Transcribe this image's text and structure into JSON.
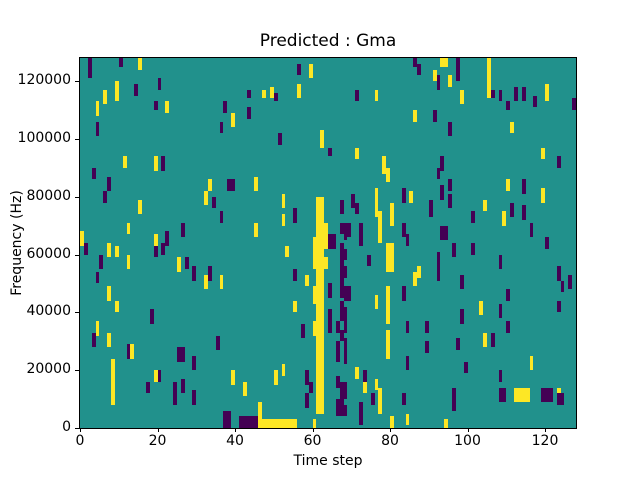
{
  "figure": {
    "title": "Predicted : Gma"
  },
  "chart_data": {
    "type": "heatmap",
    "title": "Predicted : Gma",
    "xlabel": "Time step",
    "ylabel": "Frequency (Hz)",
    "x_range": [
      0,
      128
    ],
    "y_range": [
      0,
      128000
    ],
    "x_ticks": [
      0,
      20,
      40,
      60,
      80,
      100,
      120
    ],
    "y_ticks": [
      0,
      20000,
      40000,
      60000,
      80000,
      100000,
      120000
    ],
    "grid": false,
    "legend": null,
    "colormap": "viridis",
    "colors": {
      "background_value": "#21918c",
      "low": "#440154",
      "high": "#fde725",
      "axes_text": "#000000"
    },
    "grid_size": {
      "time_steps": 128,
      "freq_rows": 128,
      "hz_per_row": 1000
    },
    "cell_encoding": "[time_step, freq_row_start, freq_row_end, value(0=purple/low,1=yellow/high), optional_time_span]",
    "cells": [
      [
        2,
        121,
        127,
        0
      ],
      [
        10,
        125,
        127,
        0
      ],
      [
        15,
        124,
        127,
        1
      ],
      [
        56,
        122,
        125,
        0
      ],
      [
        59,
        121,
        125,
        1
      ],
      [
        20,
        117,
        120,
        0
      ],
      [
        6,
        112,
        116,
        1
      ],
      [
        9,
        113,
        119,
        1
      ],
      [
        14,
        115,
        118,
        0
      ],
      [
        43,
        114,
        116,
        0
      ],
      [
        47,
        114,
        116,
        1
      ],
      [
        49,
        114,
        117,
        1
      ],
      [
        50,
        113,
        115,
        0
      ],
      [
        56,
        114,
        118,
        1
      ],
      [
        19,
        110,
        112,
        0
      ],
      [
        22,
        109,
        112,
        1
      ],
      [
        4,
        108,
        112,
        1
      ],
      [
        37,
        109,
        112,
        0
      ],
      [
        43,
        107,
        110,
        0
      ],
      [
        39,
        104,
        108,
        1
      ],
      [
        4,
        101,
        105,
        0
      ],
      [
        36,
        102,
        105,
        0
      ],
      [
        62,
        97,
        102,
        1
      ],
      [
        51,
        98,
        101,
        0
      ],
      [
        11,
        90,
        93,
        1
      ],
      [
        19,
        89,
        93,
        1
      ],
      [
        21,
        89,
        93,
        0
      ],
      [
        3,
        86,
        89,
        0
      ],
      [
        7,
        82,
        86,
        0
      ],
      [
        6,
        78,
        81,
        0
      ],
      [
        33,
        82,
        85,
        1
      ],
      [
        38,
        82,
        85,
        0,
        2
      ],
      [
        45,
        82,
        86,
        1
      ],
      [
        32,
        77,
        81,
        1
      ],
      [
        34,
        76,
        79,
        0
      ],
      [
        52,
        76,
        80,
        1
      ],
      [
        15,
        74,
        78,
        1
      ],
      [
        36,
        71,
        74,
        0
      ],
      [
        52,
        70,
        73,
        1
      ],
      [
        55,
        71,
        75,
        0
      ],
      [
        12,
        67,
        70,
        1
      ],
      [
        26,
        66,
        70,
        0
      ],
      [
        45,
        66,
        70,
        1
      ],
      [
        0,
        63,
        67,
        1
      ],
      [
        19,
        63,
        66,
        1
      ],
      [
        22,
        63,
        67,
        0
      ],
      [
        86,
        125,
        127,
        0
      ],
      [
        93,
        125,
        127,
        1,
        2
      ],
      [
        97,
        120,
        127,
        0
      ],
      [
        105,
        114,
        127,
        1
      ],
      [
        87,
        122,
        125,
        0
      ],
      [
        91,
        120,
        123,
        1
      ],
      [
        92,
        117,
        121,
        0
      ],
      [
        95,
        118,
        121,
        1
      ],
      [
        98,
        112,
        116,
        1
      ],
      [
        71,
        113,
        116,
        0
      ],
      [
        76,
        113,
        116,
        1
      ],
      [
        106,
        114,
        116,
        0
      ],
      [
        108,
        113,
        116,
        0
      ],
      [
        112,
        113,
        117,
        0
      ],
      [
        114,
        113,
        117,
        0
      ],
      [
        117,
        111,
        114,
        0
      ],
      [
        120,
        113,
        118,
        1
      ],
      [
        110,
        110,
        112,
        0
      ],
      [
        127,
        110,
        113,
        0
      ],
      [
        86,
        106,
        109,
        1
      ],
      [
        91,
        106,
        109,
        0
      ],
      [
        95,
        101,
        105,
        0
      ],
      [
        111,
        102,
        105,
        1
      ],
      [
        64,
        94,
        96,
        0
      ],
      [
        71,
        93,
        96,
        1
      ],
      [
        119,
        93,
        96,
        1
      ],
      [
        123,
        90,
        93,
        0
      ],
      [
        78,
        88,
        93,
        1
      ],
      [
        93,
        89,
        93,
        0
      ],
      [
        79,
        85,
        89,
        1
      ],
      [
        92,
        86,
        89,
        0
      ],
      [
        95,
        82,
        85,
        0
      ],
      [
        110,
        82,
        85,
        1
      ],
      [
        114,
        81,
        85,
        0
      ],
      [
        76,
        78,
        82,
        1
      ],
      [
        70,
        76,
        80,
        0
      ],
      [
        83,
        78,
        82,
        0
      ],
      [
        85,
        78,
        81,
        1
      ],
      [
        93,
        79,
        83,
        0
      ],
      [
        95,
        76,
        80,
        0
      ],
      [
        119,
        78,
        82,
        1
      ],
      [
        67,
        74,
        78,
        0
      ],
      [
        71,
        74,
        77,
        0
      ],
      [
        76,
        73,
        77,
        1
      ],
      [
        80,
        70,
        77,
        1
      ],
      [
        90,
        73,
        78,
        0
      ],
      [
        104,
        75,
        78,
        1
      ],
      [
        111,
        73,
        77,
        0
      ],
      [
        109,
        70,
        74,
        1
      ],
      [
        101,
        71,
        74,
        0
      ],
      [
        114,
        72,
        76,
        0
      ],
      [
        69,
        66,
        70,
        0
      ],
      [
        72,
        66,
        70,
        0
      ],
      [
        77,
        64,
        74,
        1
      ],
      [
        83,
        66,
        70,
        0
      ],
      [
        93,
        65,
        69,
        0,
        2
      ],
      [
        64,
        62,
        66,
        0,
        2
      ],
      [
        72,
        63,
        66,
        0
      ],
      [
        84,
        63,
        66,
        0
      ],
      [
        116,
        66,
        70,
        0
      ],
      [
        120,
        62,
        65,
        0
      ],
      [
        1,
        60,
        63,
        0
      ],
      [
        7,
        59,
        63,
        1
      ],
      [
        5,
        55,
        59,
        0
      ],
      [
        9,
        59,
        62,
        1
      ],
      [
        12,
        55,
        59,
        1
      ],
      [
        19,
        59,
        62,
        0
      ],
      [
        21,
        60,
        63,
        0
      ],
      [
        25,
        54,
        58,
        1
      ],
      [
        27,
        55,
        58,
        0
      ],
      [
        29,
        51,
        55,
        0
      ],
      [
        32,
        48,
        52,
        1
      ],
      [
        33,
        51,
        55,
        0
      ],
      [
        36,
        48,
        52,
        1
      ],
      [
        4,
        50,
        53,
        0
      ],
      [
        7,
        44,
        48,
        1
      ],
      [
        9,
        40,
        43,
        1
      ],
      [
        18,
        36,
        40,
        0
      ],
      [
        4,
        32,
        36,
        1
      ],
      [
        3,
        28,
        32,
        0
      ],
      [
        7,
        28,
        32,
        1
      ],
      [
        12,
        24,
        28,
        0
      ],
      [
        13,
        24,
        28,
        1
      ],
      [
        25,
        23,
        27,
        0,
        2
      ],
      [
        29,
        20,
        24,
        0
      ],
      [
        35,
        27,
        31,
        0
      ],
      [
        20,
        16,
        19,
        0
      ],
      [
        19,
        16,
        19,
        1
      ],
      [
        26,
        12,
        16,
        0
      ],
      [
        17,
        12,
        15,
        0
      ],
      [
        24,
        8,
        15,
        0
      ],
      [
        29,
        8,
        12,
        0
      ],
      [
        8,
        8,
        23,
        1
      ],
      [
        37,
        0,
        5,
        0,
        2
      ],
      [
        41,
        0,
        3,
        0,
        5
      ],
      [
        46,
        0,
        2,
        1,
        9
      ],
      [
        46,
        0,
        8,
        1
      ],
      [
        50,
        15,
        19,
        1
      ],
      [
        39,
        15,
        19,
        1
      ],
      [
        42,
        11,
        15,
        1
      ],
      [
        52,
        18,
        21,
        1
      ],
      [
        55,
        51,
        54,
        0
      ],
      [
        58,
        49,
        52,
        1
      ],
      [
        53,
        59,
        62,
        1
      ],
      [
        55,
        40,
        43,
        1
      ],
      [
        57,
        31,
        35,
        0
      ],
      [
        55,
        0,
        2,
        1
      ],
      [
        61,
        56,
        79,
        1,
        2
      ],
      [
        60,
        55,
        65,
        1
      ],
      [
        61,
        5,
        56,
        1,
        2
      ],
      [
        60,
        43,
        48,
        1
      ],
      [
        60,
        32,
        36,
        1
      ],
      [
        60,
        0,
        2,
        1
      ],
      [
        63,
        62,
        70,
        1
      ],
      [
        63,
        55,
        58,
        1
      ],
      [
        58,
        15,
        19,
        0
      ],
      [
        58,
        7,
        11,
        0
      ],
      [
        59,
        12,
        15,
        0
      ],
      [
        67,
        45,
        63,
        0
      ],
      [
        79,
        54,
        63,
        1,
        2
      ],
      [
        74,
        56,
        59,
        0
      ],
      [
        92,
        56,
        60,
        0
      ],
      [
        96,
        59,
        63,
        0
      ],
      [
        101,
        60,
        63,
        0
      ],
      [
        108,
        55,
        59,
        0
      ],
      [
        87,
        52,
        55,
        1
      ],
      [
        92,
        51,
        55,
        0
      ],
      [
        98,
        48,
        52,
        0
      ],
      [
        86,
        49,
        53,
        1
      ],
      [
        124,
        47,
        50,
        0
      ],
      [
        110,
        44,
        47,
        0
      ],
      [
        103,
        39,
        43,
        1
      ],
      [
        108,
        38,
        42,
        0
      ],
      [
        98,
        36,
        40,
        0
      ],
      [
        123,
        40,
        43,
        0
      ],
      [
        104,
        28,
        32,
        1
      ],
      [
        106,
        28,
        32,
        0
      ],
      [
        110,
        33,
        36,
        0
      ],
      [
        97,
        27,
        30,
        0
      ],
      [
        99,
        19,
        22,
        0
      ],
      [
        116,
        20,
        24,
        1
      ],
      [
        108,
        16,
        19,
        0
      ],
      [
        108,
        9,
        13,
        0,
        2
      ],
      [
        112,
        9,
        13,
        1,
        4
      ],
      [
        119,
        9,
        13,
        0,
        3
      ],
      [
        123,
        11,
        13,
        1
      ],
      [
        123,
        8,
        11,
        0,
        2
      ],
      [
        67,
        40,
        43,
        0
      ],
      [
        64,
        45,
        49,
        0
      ],
      [
        64,
        36,
        40,
        0
      ],
      [
        64,
        33,
        36,
        0
      ],
      [
        66,
        33,
        36,
        0
      ],
      [
        66,
        26,
        29,
        0
      ],
      [
        68,
        22,
        26,
        0
      ],
      [
        66,
        14,
        17,
        0
      ],
      [
        68,
        10,
        13,
        0
      ],
      [
        66,
        6,
        9,
        0
      ],
      [
        72,
        5,
        8,
        0
      ],
      [
        75,
        8,
        11,
        0
      ],
      [
        71,
        17,
        20,
        1
      ],
      [
        73,
        15,
        19,
        0
      ],
      [
        76,
        13,
        16,
        1
      ],
      [
        77,
        5,
        13,
        1
      ],
      [
        79,
        24,
        33,
        1
      ],
      [
        79,
        36,
        48,
        1
      ],
      [
        83,
        44,
        48,
        0
      ],
      [
        84,
        33,
        36,
        0
      ],
      [
        89,
        33,
        36,
        0
      ],
      [
        89,
        26,
        29,
        0
      ],
      [
        84,
        20,
        24,
        0
      ],
      [
        83,
        8,
        11,
        0
      ],
      [
        84,
        1,
        4,
        1
      ],
      [
        96,
        10,
        13,
        0
      ],
      [
        96,
        6,
        9,
        0
      ],
      [
        126,
        48,
        52,
        0
      ],
      [
        123,
        51,
        55,
        0
      ],
      [
        76,
        41,
        45,
        1
      ],
      [
        80,
        0,
        3,
        1
      ],
      [
        73,
        12,
        15,
        1
      ],
      [
        94,
        0,
        2,
        1
      ],
      [
        67,
        67,
        70,
        0,
        2
      ],
      [
        68,
        65,
        67,
        0
      ],
      [
        72,
        65,
        67,
        0
      ],
      [
        67,
        58,
        61,
        0,
        2
      ],
      [
        67,
        55,
        58,
        0
      ],
      [
        68,
        52,
        55,
        0
      ],
      [
        67,
        48,
        51,
        0
      ],
      [
        68,
        44,
        48,
        0,
        2
      ],
      [
        67,
        37,
        41,
        0,
        2
      ],
      [
        68,
        33,
        37,
        0
      ],
      [
        67,
        30,
        33,
        0
      ],
      [
        68,
        26,
        30,
        0
      ],
      [
        66,
        23,
        26,
        0
      ],
      [
        67,
        11,
        15,
        0,
        2
      ],
      [
        67,
        7,
        11,
        0
      ],
      [
        66,
        4,
        7,
        0,
        3
      ],
      [
        72,
        1,
        4,
        0
      ]
    ]
  }
}
